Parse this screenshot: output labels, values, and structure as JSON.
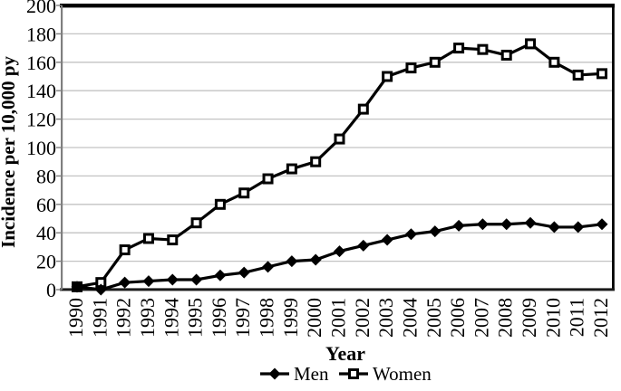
{
  "figure": {
    "title": ""
  },
  "colors": {
    "series_line": "#000000",
    "gridline": "#c3c3c3",
    "left_axis": "#7f7f7f",
    "plot_border": "#000000",
    "bottom_axis": "#1a1a1a",
    "background": "#ffffff"
  },
  "chart_data": {
    "type": "line",
    "title": "",
    "xlabel": "Year",
    "ylabel": "Incidence per 10,000 py",
    "ylim": [
      0,
      200
    ],
    "ytick_step": 20,
    "grid": true,
    "legend_position": "bottom-center",
    "categories": [
      "1990",
      "1991",
      "1992",
      "1993",
      "1994",
      "1995",
      "1996",
      "1997",
      "1998",
      "1999",
      "2000",
      "2001",
      "2002",
      "2003",
      "2004",
      "2005",
      "2006",
      "2007",
      "2008",
      "2009",
      "2010",
      "2011",
      "2012"
    ],
    "series": [
      {
        "name": "Men",
        "marker": "filled-diamond",
        "color": "#000000",
        "values": [
          2,
          0,
          5,
          6,
          7,
          7,
          10,
          12,
          16,
          20,
          21,
          27,
          31,
          35,
          39,
          41,
          45,
          46,
          46,
          47,
          44,
          44,
          46
        ]
      },
      {
        "name": "Women",
        "marker": "open-square",
        "color": "#000000",
        "values": [
          2,
          5,
          28,
          36,
          35,
          47,
          60,
          68,
          78,
          85,
          90,
          106,
          127,
          150,
          156,
          160,
          170,
          169,
          165,
          173,
          160,
          151,
          152
        ]
      }
    ]
  }
}
